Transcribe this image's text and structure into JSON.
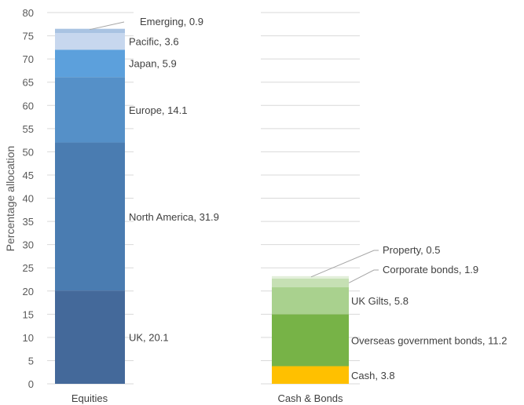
{
  "chart_data": {
    "type": "bar",
    "stacked": true,
    "ylabel": "Percentage allocation",
    "ylim": [
      0,
      80
    ],
    "ytick_step": 5,
    "grid": true,
    "categories": [
      "Equities",
      "Cash & Bonds"
    ],
    "stacks": [
      {
        "category": "Equities",
        "segments": [
          {
            "name": "UK",
            "value": 20.1,
            "label": "UK, 20.1",
            "color": "#44699a"
          },
          {
            "name": "North America",
            "value": 31.9,
            "label": "North America, 31.9",
            "color": "#4a7cb1"
          },
          {
            "name": "Europe",
            "value": 14.1,
            "label": "Europe, 14.1",
            "color": "#5590c8"
          },
          {
            "name": "Japan",
            "value": 5.9,
            "label": "Japan, 5.9",
            "color": "#5ca0dc"
          },
          {
            "name": "Pacific",
            "value": 3.6,
            "label": "Pacific, 3.6",
            "color": "#c7d7ee"
          },
          {
            "name": "Emerging",
            "value": 0.9,
            "label": "Emerging, 0.9",
            "color": "#a9c3e2"
          }
        ]
      },
      {
        "category": "Cash & Bonds",
        "segments": [
          {
            "name": "Cash",
            "value": 3.8,
            "label": "Cash, 3.8",
            "color": "#ffc000"
          },
          {
            "name": "Overseas government bonds",
            "value": 11.2,
            "label": "Overseas government bonds, 11.2",
            "color": "#77b347"
          },
          {
            "name": "UK Gilts",
            "value": 5.8,
            "label": "UK Gilts, 5.8",
            "color": "#a9d18e"
          },
          {
            "name": "Corporate bonds",
            "value": 1.9,
            "label": "Corporate bonds, 1.9",
            "color": "#c6e0b4"
          },
          {
            "name": "Property",
            "value": 0.5,
            "label": "Property, 0.5",
            "color": "#e2efda"
          }
        ]
      }
    ]
  }
}
